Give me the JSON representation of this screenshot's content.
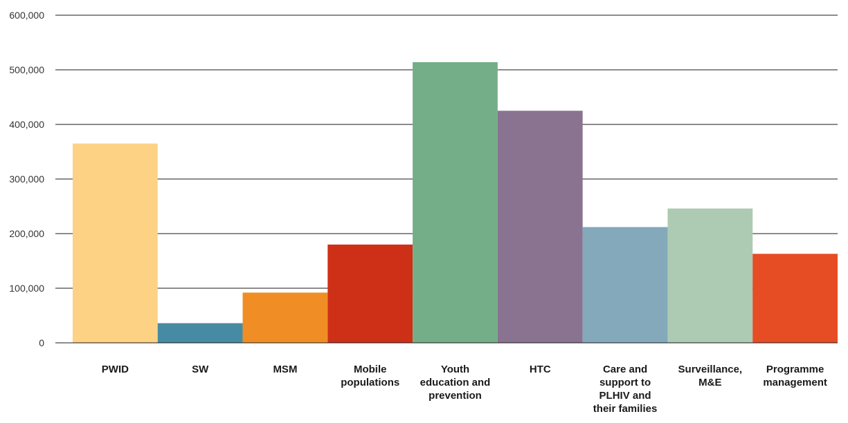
{
  "chart_data": {
    "type": "bar",
    "title": "",
    "xlabel": "",
    "ylabel": "",
    "ylim": [
      0,
      600000
    ],
    "yticks": [
      0,
      100000,
      200000,
      300000,
      400000,
      500000,
      600000
    ],
    "ytick_labels": [
      "0",
      "100,000",
      "200,000",
      "300,000",
      "400,000",
      "500,000",
      "600,000"
    ],
    "grid": true,
    "categories": [
      [
        "PWID"
      ],
      [
        "SW"
      ],
      [
        "MSM"
      ],
      [
        "Mobile",
        "populations"
      ],
      [
        "Youth",
        "education and",
        "prevention"
      ],
      [
        "HTC"
      ],
      [
        "Care and",
        "support to",
        "PLHIV and",
        "their families"
      ],
      [
        "Surveillance,",
        "M&E"
      ],
      [
        "Programme",
        "management"
      ]
    ],
    "values": [
      365000,
      36000,
      92000,
      180000,
      514000,
      425000,
      212000,
      246000,
      163000
    ],
    "colors": [
      "#fdd285",
      "#468ba3",
      "#f18d25",
      "#ce3017",
      "#74ae88",
      "#8a7390",
      "#83a9bb",
      "#adcab3",
      "#e64d24"
    ]
  }
}
